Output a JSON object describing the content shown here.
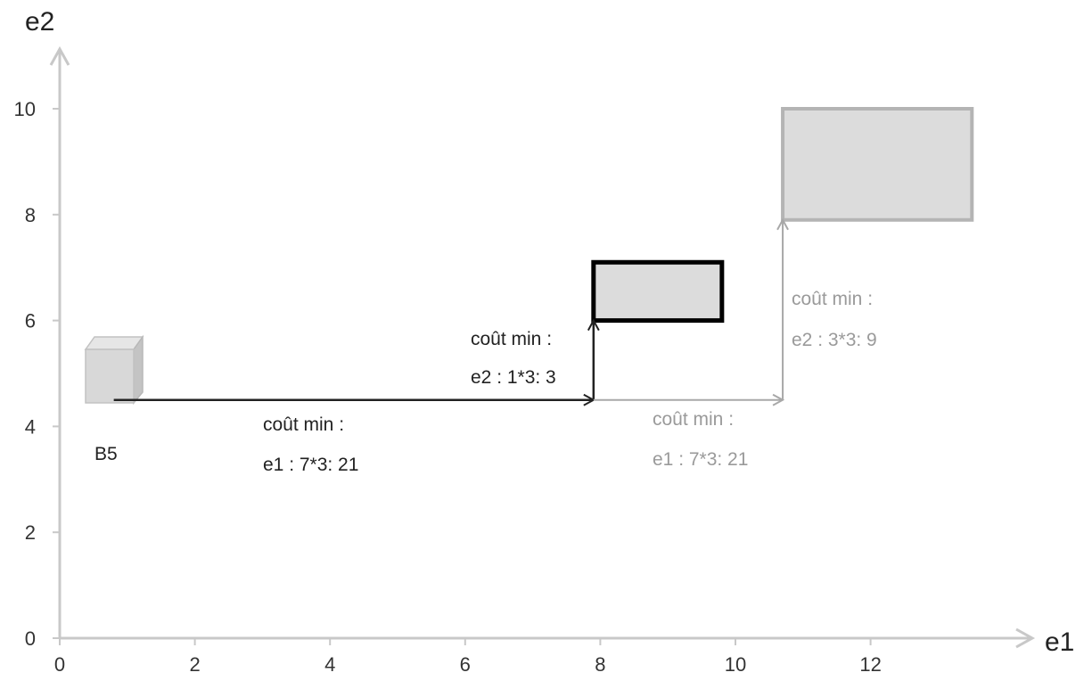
{
  "axes": {
    "x_label": "e1",
    "y_label": "e2",
    "x_ticks": [
      "0",
      "2",
      "4",
      "6",
      "8",
      "10",
      "12"
    ],
    "y_ticks": [
      "0",
      "2",
      "4",
      "6",
      "8",
      "10"
    ]
  },
  "chart_data": {
    "type": "diagram",
    "xlabel": "e1",
    "ylabel": "e2",
    "xlim": [
      0,
      14.5
    ],
    "ylim": [
      0,
      11
    ],
    "start_point": {
      "label": "B5",
      "e1": 0.8,
      "e2": 4.5
    },
    "boxes": [
      {
        "id": "box-highlighted",
        "x0": 7.9,
        "x1": 9.8,
        "y0": 6.0,
        "y1": 7.1,
        "style": "dark"
      },
      {
        "id": "box-far",
        "x0": 10.7,
        "x1": 13.5,
        "y0": 7.9,
        "y1": 10.0,
        "style": "light"
      }
    ],
    "arrows": [
      {
        "id": "arrow-e1-dark",
        "from": [
          0.8,
          4.5
        ],
        "to": [
          7.9,
          4.5
        ],
        "style": "dark"
      },
      {
        "id": "arrow-e2-dark",
        "from": [
          7.9,
          4.5
        ],
        "to": [
          7.9,
          6.0
        ],
        "style": "dark"
      },
      {
        "id": "arrow-e1-light",
        "from": [
          7.9,
          4.5
        ],
        "to": [
          10.7,
          4.5
        ],
        "style": "light"
      },
      {
        "id": "arrow-e2-light",
        "from": [
          10.7,
          4.5
        ],
        "to": [
          10.7,
          7.9
        ],
        "style": "light"
      }
    ]
  },
  "annotations": {
    "b5": "B5",
    "cost_e1_dark": {
      "line1": "coût min :",
      "line2": "e1 : 7*3: 21"
    },
    "cost_e2_dark": {
      "line1": "coût min :",
      "line2": "e2 : 1*3: 3"
    },
    "cost_e1_light": {
      "line1": "coût min :",
      "line2": "e1 : 7*3: 21"
    },
    "cost_e2_light": {
      "line1": "coût min :",
      "line2": "e2 : 3*3: 9"
    }
  },
  "colors": {
    "dark": "#222222",
    "light": "#a8a8a8",
    "box_fill": "#dcdcdc",
    "axis": "#c8c8c8"
  }
}
